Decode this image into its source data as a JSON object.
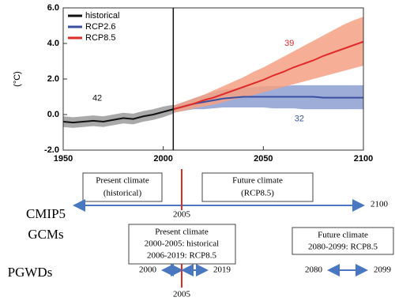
{
  "chart_data": {
    "type": "line",
    "ylabel": "(°C)",
    "xlim": [
      1950,
      2100
    ],
    "xticks": [
      1950,
      2000,
      2050,
      2100
    ],
    "ylim": [
      -2,
      6
    ],
    "yticks": [
      {
        "value": -2,
        "label": "-2.0"
      },
      {
        "value": 0,
        "label": "0.0"
      },
      {
        "value": 2,
        "label": "2.0"
      },
      {
        "value": 4,
        "label": "4.0"
      },
      {
        "value": 6,
        "label": "6.0"
      }
    ],
    "vline": 2005,
    "legend": "upper left",
    "series": [
      {
        "name": "historical",
        "color": "#111111",
        "band_color": "#9a9a9a",
        "x": [
          1950,
          1955,
          1960,
          1965,
          1970,
          1975,
          1980,
          1985,
          1990,
          1995,
          2000,
          2005
        ],
        "values": [
          -0.4,
          -0.45,
          -0.4,
          -0.35,
          -0.4,
          -0.3,
          -0.2,
          -0.25,
          -0.1,
          0.0,
          0.15,
          0.3
        ],
        "lower": [
          -0.7,
          -0.75,
          -0.7,
          -0.65,
          -0.7,
          -0.6,
          -0.5,
          -0.55,
          -0.4,
          -0.3,
          -0.15,
          0.05
        ],
        "upper": [
          -0.1,
          -0.15,
          -0.1,
          -0.05,
          -0.1,
          0.0,
          0.1,
          0.05,
          0.2,
          0.3,
          0.45,
          0.55
        ]
      },
      {
        "name": "RCP2.6",
        "color": "#3a4fa0",
        "band_color": "#8d9fd0",
        "x": [
          2005,
          2010,
          2015,
          2020,
          2025,
          2030,
          2035,
          2040,
          2045,
          2050,
          2055,
          2060,
          2065,
          2070,
          2075,
          2080,
          2085,
          2090,
          2095,
          2100
        ],
        "values": [
          0.3,
          0.45,
          0.6,
          0.7,
          0.8,
          0.9,
          0.95,
          1.0,
          1.0,
          1.0,
          1.0,
          1.0,
          1.0,
          1.0,
          1.0,
          0.95,
          0.95,
          0.95,
          0.95,
          0.95
        ],
        "lower": [
          0.1,
          0.2,
          0.3,
          0.3,
          0.35,
          0.4,
          0.4,
          0.4,
          0.4,
          0.4,
          0.35,
          0.35,
          0.35,
          0.3,
          0.3,
          0.3,
          0.3,
          0.3,
          0.3,
          0.3
        ],
        "upper": [
          0.5,
          0.7,
          0.9,
          1.1,
          1.25,
          1.4,
          1.45,
          1.5,
          1.55,
          1.6,
          1.6,
          1.6,
          1.65,
          1.65,
          1.65,
          1.65,
          1.65,
          1.65,
          1.65,
          1.65
        ]
      },
      {
        "name": "RCP8.5",
        "color": "#e02b2b",
        "band_color": "#f4a184",
        "x": [
          2005,
          2010,
          2015,
          2020,
          2025,
          2030,
          2035,
          2040,
          2045,
          2050,
          2055,
          2060,
          2065,
          2070,
          2075,
          2080,
          2085,
          2090,
          2095,
          2100
        ],
        "values": [
          0.3,
          0.45,
          0.6,
          0.8,
          0.95,
          1.15,
          1.35,
          1.55,
          1.75,
          1.95,
          2.2,
          2.4,
          2.65,
          2.85,
          3.05,
          3.3,
          3.5,
          3.7,
          3.9,
          4.1
        ],
        "lower": [
          0.1,
          0.2,
          0.35,
          0.45,
          0.55,
          0.7,
          0.85,
          0.95,
          1.1,
          1.25,
          1.4,
          1.55,
          1.7,
          1.85,
          2.0,
          2.15,
          2.3,
          2.45,
          2.6,
          2.75
        ],
        "upper": [
          0.5,
          0.7,
          0.9,
          1.1,
          1.35,
          1.6,
          1.85,
          2.1,
          2.4,
          2.65,
          2.95,
          3.25,
          3.55,
          3.85,
          4.15,
          4.45,
          4.75,
          5.05,
          5.3,
          5.5
        ]
      }
    ],
    "annotations": [
      {
        "text": "42",
        "x": 1967,
        "y": 0.9,
        "color": "#111111"
      },
      {
        "text": "39",
        "x": 2063,
        "y": 4.0,
        "color": "#e02b2b"
      },
      {
        "text": "32",
        "x": 2068,
        "y": -0.25,
        "color": "#3a4fa0"
      }
    ]
  },
  "diagram": {
    "cmip5": {
      "label": [
        "CMIP5",
        "GCMs"
      ],
      "present_box": [
        "Present climate",
        "(historical)"
      ],
      "future_box": [
        "Future climate",
        "(RCP8.5)"
      ],
      "split_year": "2005",
      "end_year": "2100"
    },
    "pgwd": {
      "label": "PGWDs",
      "present_box": [
        "Present climate",
        "2000-2005: historical",
        "2006-2019: RCP8.5"
      ],
      "future_box": [
        "Future climate",
        "2080-2099: RCP8.5"
      ],
      "years": [
        "2000",
        "2019",
        "2080",
        "2099"
      ],
      "split_year": "2005"
    }
  }
}
